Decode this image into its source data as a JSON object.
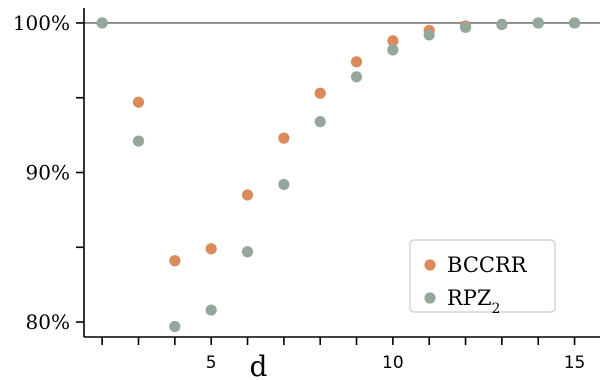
{
  "chart_data": {
    "type": "scatter",
    "title": "",
    "xlabel": "d",
    "ylabel": "",
    "xlim": [
      1.5,
      15.7
    ],
    "ylim": [
      79,
      101
    ],
    "x_ticks": [
      2,
      3,
      4,
      5,
      6,
      7,
      8,
      9,
      10,
      11,
      12,
      13,
      14,
      15
    ],
    "x_tick_labels": {
      "5": "5",
      "10": "10",
      "15": "15"
    },
    "y_ticks": [
      80,
      85,
      90,
      95,
      100
    ],
    "y_tick_labels": {
      "80": "80%",
      "90": "90%",
      "100": "100%"
    },
    "reference_line": 100,
    "reference_line_color": "#888888",
    "grid": false,
    "legend_position": "lower-right",
    "series": [
      {
        "name": "BCCRR",
        "color": "#DA8A5B",
        "x": [
          2,
          3,
          4,
          5,
          6,
          7,
          8,
          9,
          10,
          11,
          12,
          13,
          14,
          15
        ],
        "y": [
          100,
          94.7,
          84.1,
          84.9,
          88.5,
          92.3,
          95.3,
          97.4,
          98.8,
          99.5,
          99.8,
          99.9,
          100,
          100
        ]
      },
      {
        "name": "RPZ",
        "name_subscript": "2",
        "color": "#93A89A",
        "x": [
          2,
          3,
          4,
          5,
          6,
          7,
          8,
          9,
          10,
          11,
          12,
          13,
          14,
          15
        ],
        "y": [
          100,
          92.1,
          79.7,
          80.8,
          84.7,
          89.2,
          93.4,
          96.4,
          98.2,
          99.2,
          99.7,
          99.9,
          100,
          100
        ]
      }
    ]
  }
}
